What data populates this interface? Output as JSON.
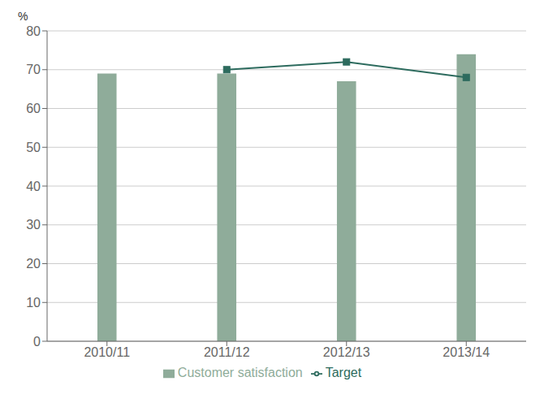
{
  "chart_data": {
    "type": "bar",
    "ylabel": "%",
    "categories": [
      "2010/11",
      "2011/12",
      "2012/13",
      "2013/14"
    ],
    "series": [
      {
        "name": "Customer satisfaction",
        "type": "bar",
        "color": "#8fac9a",
        "values": [
          69,
          69,
          67,
          74
        ]
      },
      {
        "name": "Target",
        "type": "line",
        "color": "#2d6b5e",
        "marker": "square",
        "values": [
          null,
          70,
          72,
          68
        ]
      }
    ],
    "ylim": [
      0,
      80
    ],
    "yticks": [
      0,
      10,
      20,
      30,
      40,
      50,
      60,
      70,
      80
    ],
    "grid": true,
    "legend": "bottom"
  }
}
